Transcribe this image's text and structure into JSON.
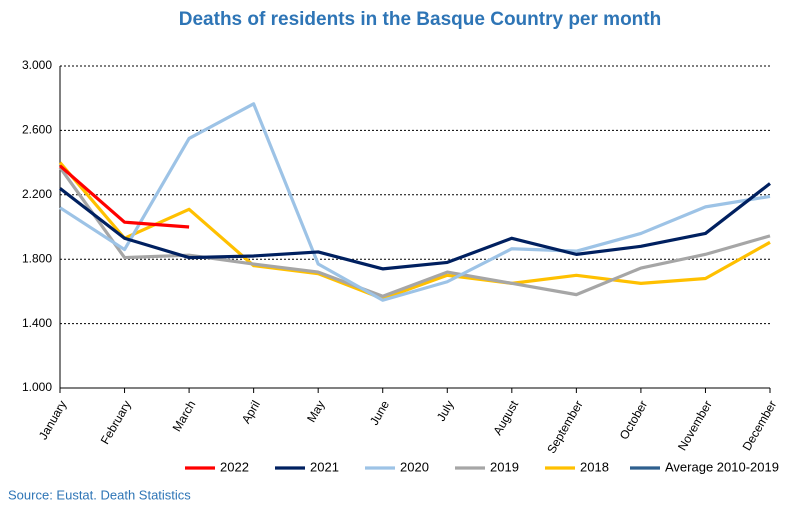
{
  "chart_data": {
    "type": "line",
    "title": "Deaths of residents in the Basque Country per month",
    "categories": [
      "January",
      "February",
      "March",
      "April",
      "May",
      "June",
      "July",
      "August",
      "September",
      "October",
      "November",
      "December"
    ],
    "series": [
      {
        "name": "2022",
        "color": "#ff0000",
        "values": [
          2380,
          2030,
          2000,
          null,
          null,
          null,
          null,
          null,
          null,
          null,
          null,
          null
        ]
      },
      {
        "name": "2021",
        "color": "#002060",
        "values": [
          2240,
          1930,
          1810,
          1820,
          1845,
          1740,
          1780,
          1930,
          1830,
          1880,
          1960,
          2270
        ]
      },
      {
        "name": "2020",
        "color": "#9dc3e6",
        "values": [
          2120,
          1860,
          2550,
          2765,
          1770,
          1545,
          1660,
          1865,
          1850,
          1960,
          2125,
          2190
        ]
      },
      {
        "name": "2019",
        "color": "#a6a6a6",
        "values": [
          2370,
          1810,
          1825,
          1770,
          1720,
          1570,
          1720,
          1650,
          1580,
          1745,
          1830,
          1945
        ]
      },
      {
        "name": "2018",
        "color": "#ffc000",
        "values": [
          2400,
          1930,
          2110,
          1760,
          1710,
          1555,
          1700,
          1650,
          1700,
          1650,
          1680,
          1905
        ]
      },
      {
        "name": "Average 2010-2019",
        "color": "#2e5f8e",
        "values": [
          null,
          null,
          null,
          null,
          null,
          null,
          null,
          null,
          null,
          null,
          null,
          null
        ]
      }
    ],
    "ylim": [
      1000,
      3000
    ],
    "yticks": [
      {
        "value": 1000,
        "label": "1.000"
      },
      {
        "value": 1400,
        "label": "1.400"
      },
      {
        "value": 1800,
        "label": "1.800"
      },
      {
        "value": 2200,
        "label": "2.200"
      },
      {
        "value": 2600,
        "label": "2.600"
      },
      {
        "value": 3000,
        "label": "3.000"
      }
    ],
    "grid": true,
    "source": "Source: Eustat. Death Statistics"
  }
}
